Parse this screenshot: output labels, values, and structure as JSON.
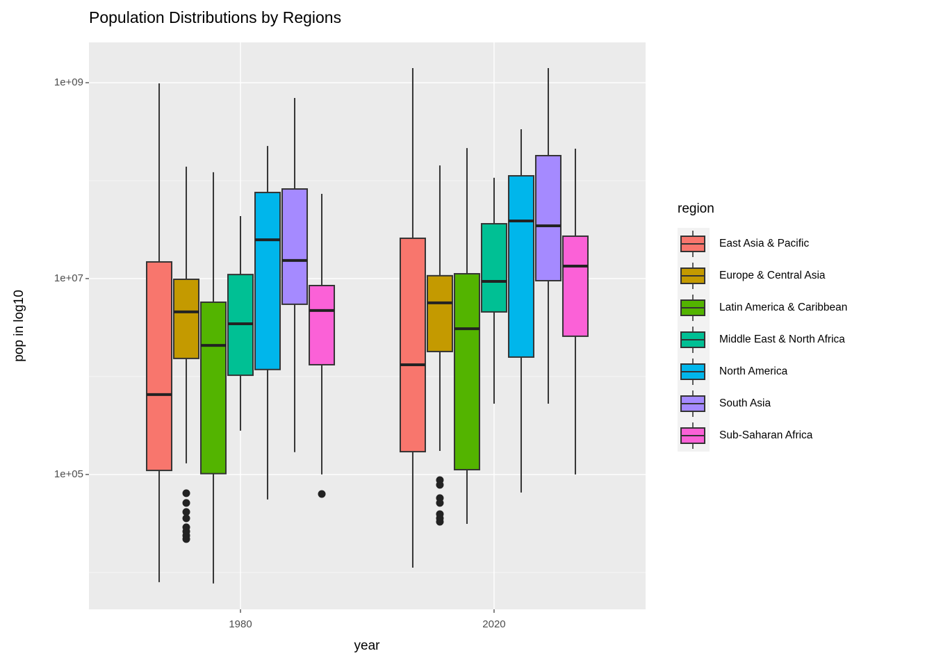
{
  "chart_data": {
    "type": "boxplot",
    "title": "Population Distributions by Regions",
    "x_label": "year",
    "y_label": "pop in log10",
    "legend_title": "region",
    "x": [
      1980,
      2020
    ],
    "xlim": [
      1956.1,
      2043.9
    ],
    "xticks": [
      1980,
      2020
    ],
    "ylim": [
      4200,
      2580000000
    ],
    "log_scale": true,
    "grid": true,
    "yticks": [
      {
        "value": 100000,
        "label": "1e+05"
      },
      {
        "value": 10000000,
        "label": "1e+07"
      },
      {
        "value": 1000000000,
        "label": "1e+09"
      }
    ],
    "minor_yticks": [
      10000,
      1000000,
      100000000
    ],
    "legend_position": "right",
    "series": [
      {
        "name": "East Asia & Pacific",
        "color": "#F8766D",
        "min": [
          7960,
          11200
        ],
        "q1": [
          110000,
          171000
        ],
        "median": [
          655000,
          1320000
        ],
        "q3": [
          14800000,
          25800000
        ],
        "max": [
          984000000,
          1410000000
        ],
        "outliers": [
          [],
          []
        ]
      },
      {
        "name": "Europe & Central Asia",
        "color": "#C49A00",
        "min": [
          130000,
          174000
        ],
        "q1": [
          1530000,
          1800000
        ],
        "median": [
          4570000,
          5650000
        ],
        "q3": [
          9840000,
          10700000
        ],
        "max": [
          139000000,
          143000000
        ],
        "outliers": [
          [
            64400,
            51200,
            41400,
            35700,
            28900,
            26200,
            23800,
            21900
          ],
          [
            87700,
            78300,
            57400,
            51200,
            39400,
            35700,
            32900
          ]
        ]
      },
      {
        "name": "Latin America & Caribbean",
        "color": "#53B400",
        "min": [
          7710,
          31300
        ],
        "q1": [
          102000,
          112000
        ],
        "median": [
          2080000,
          3080000
        ],
        "q3": [
          5740000,
          11200000
        ],
        "max": [
          122000000,
          215000000
        ],
        "outliers": [
          [],
          []
        ]
      },
      {
        "name": "Middle East & North Africa",
        "color": "#00C094",
        "min": [
          280000,
          528000
        ],
        "q1": [
          1030000,
          4570000
        ],
        "median": [
          3460000,
          9370000
        ],
        "q3": [
          11000000,
          36300000
        ],
        "max": [
          43500000,
          107000000
        ],
        "outliers": [
          [],
          []
        ]
      },
      {
        "name": "North America",
        "color": "#00B6EB",
        "min": [
          55600,
          65500
        ],
        "q1": [
          1180000,
          1580000
        ],
        "median": [
          24900000,
          38800000
        ],
        "q3": [
          75700000,
          112000000
        ],
        "max": [
          226000000,
          335000000
        ],
        "outliers": [
          [],
          []
        ]
      },
      {
        "name": "South Asia",
        "color": "#A58AFF",
        "min": [
          169000,
          528000
        ],
        "q1": [
          5470000,
          9520000
        ],
        "median": [
          15300000,
          34600000
        ],
        "q3": [
          82200000,
          180000000
        ],
        "max": [
          698000000,
          1410000000
        ],
        "outliers": [
          [],
          []
        ]
      },
      {
        "name": "Sub-Saharan Africa",
        "color": "#FB61D7",
        "min": [
          100000,
          100000
        ],
        "q1": [
          1320000,
          2580000
        ],
        "median": [
          4720000,
          13400000
        ],
        "q3": [
          8490000,
          27100000
        ],
        "max": [
          73300000,
          212000000
        ],
        "outliers": [
          [
            63200
          ],
          []
        ]
      }
    ]
  }
}
